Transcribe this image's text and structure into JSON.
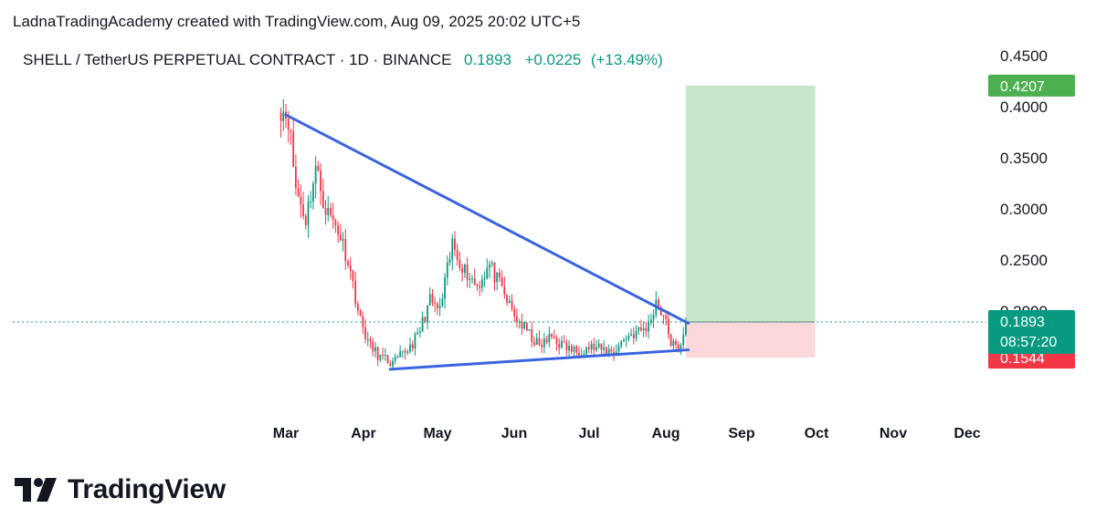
{
  "attribution": "LadnaTradingAcademy created with TradingView.com, Aug 09, 2025 20:02 UTC+5",
  "symbol_line": "SHELL / TetherUS PERPETUAL CONTRACT · 1D · BINANCE",
  "quote": {
    "last": "0.1893",
    "change": "+0.0225",
    "change_pct": "(+13.49%)"
  },
  "brand": {
    "name": "TradingView",
    "logo_icon": "tradingview-logo-icon"
  },
  "colors": {
    "up": "#089981",
    "down": "#f23645",
    "trendline": "#3a63e0",
    "profit_zone": "#c8e6c9",
    "loss_zone": "#fcd8da"
  },
  "chart_data": {
    "type": "candlestick",
    "title": "SHELL / TetherUS PERPETUAL CONTRACT · 1D · BINANCE",
    "x_axis": {
      "tick_labels": [
        "Mar",
        "Apr",
        "May",
        "Jun",
        "Jul",
        "Aug",
        "Sep",
        "Oct",
        "Nov",
        "Dec"
      ]
    },
    "y_axis": {
      "range": [
        0.13,
        0.47
      ],
      "tick_labels": [
        "0.4500",
        "0.4000",
        "0.3500",
        "0.3000",
        "0.2500",
        "0.2000"
      ],
      "side": "right"
    },
    "grid": false,
    "current_price": {
      "value": "0.1893",
      "countdown": "08:57:20"
    },
    "series": [
      {
        "name": "",
        "points": [
          {
            "t": "2025-02-27",
            "price": 0.4
          },
          {
            "t": "2025-03-02",
            "price": 0.39
          },
          {
            "t": "2025-03-05",
            "price": 0.32
          },
          {
            "t": "2025-03-09",
            "price": 0.29
          },
          {
            "t": "2025-03-13",
            "price": 0.34
          },
          {
            "t": "2025-03-17",
            "price": 0.3
          },
          {
            "t": "2025-03-22",
            "price": 0.28
          },
          {
            "t": "2025-03-26",
            "price": 0.25
          },
          {
            "t": "2025-03-31",
            "price": 0.19
          },
          {
            "t": "2025-04-04",
            "price": 0.165
          },
          {
            "t": "2025-04-08",
            "price": 0.155
          },
          {
            "t": "2025-04-13",
            "price": 0.148
          },
          {
            "t": "2025-04-18",
            "price": 0.16
          },
          {
            "t": "2025-04-23",
            "price": 0.175
          },
          {
            "t": "2025-04-28",
            "price": 0.21
          },
          {
            "t": "2025-05-02",
            "price": 0.2
          },
          {
            "t": "2025-05-07",
            "price": 0.265
          },
          {
            "t": "2025-05-12",
            "price": 0.24
          },
          {
            "t": "2025-05-17",
            "price": 0.225
          },
          {
            "t": "2025-05-22",
            "price": 0.245
          },
          {
            "t": "2025-05-27",
            "price": 0.22
          },
          {
            "t": "2025-06-01",
            "price": 0.195
          },
          {
            "t": "2025-06-06",
            "price": 0.18
          },
          {
            "t": "2025-06-11",
            "price": 0.165
          },
          {
            "t": "2025-06-16",
            "price": 0.175
          },
          {
            "t": "2025-06-21",
            "price": 0.165
          },
          {
            "t": "2025-06-26",
            "price": 0.16
          },
          {
            "t": "2025-07-01",
            "price": 0.165
          },
          {
            "t": "2025-07-06",
            "price": 0.162
          },
          {
            "t": "2025-07-11",
            "price": 0.16
          },
          {
            "t": "2025-07-16",
            "price": 0.175
          },
          {
            "t": "2025-07-21",
            "price": 0.18
          },
          {
            "t": "2025-07-25",
            "price": 0.185
          },
          {
            "t": "2025-07-28",
            "price": 0.21
          },
          {
            "t": "2025-07-31",
            "price": 0.195
          },
          {
            "t": "2025-08-03",
            "price": 0.17
          },
          {
            "t": "2025-08-06",
            "price": 0.16
          },
          {
            "t": "2025-08-09",
            "price": 0.1893
          }
        ]
      }
    ],
    "trendlines": [
      {
        "name": "",
        "from": {
          "t": "2025-03-01",
          "price": 0.392
        },
        "to": {
          "t": "2025-08-10",
          "price": 0.188
        }
      },
      {
        "name": "",
        "from": {
          "t": "2025-04-12",
          "price": 0.143
        },
        "to": {
          "t": "2025-08-10",
          "price": 0.162
        }
      }
    ],
    "position": {
      "type": "long",
      "entry": 0.1893,
      "take_profit": {
        "value": 0.4207,
        "label": "0.4207"
      },
      "stop_loss": {
        "value": 0.1544,
        "label": "0.1544"
      },
      "from_t": "2025-08-09",
      "to_t": "2025-09-30"
    }
  }
}
